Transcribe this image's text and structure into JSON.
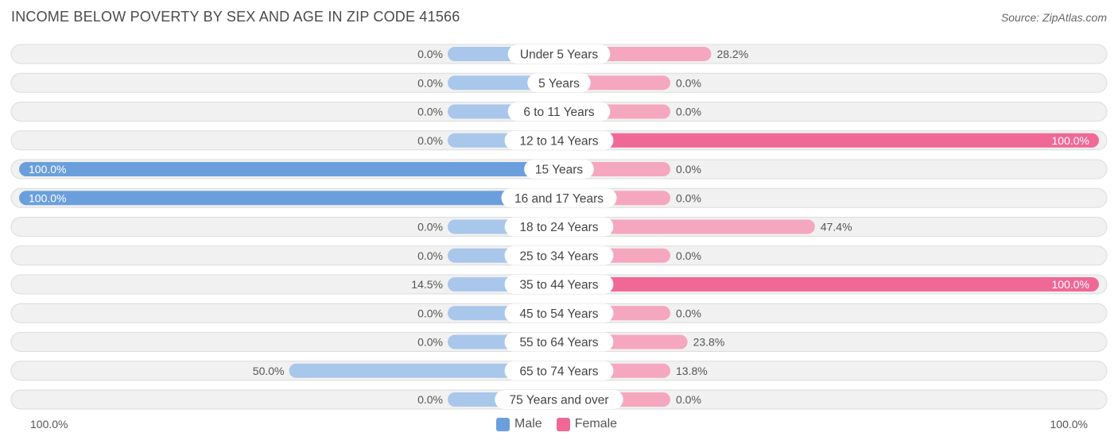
{
  "title": "INCOME BELOW POVERTY BY SEX AND AGE IN ZIP CODE 41566",
  "source": "Source: ZipAtlas.com",
  "axis": {
    "left_label": "100.0%",
    "right_label": "100.0%"
  },
  "legend": [
    {
      "label": "Male",
      "color": "#6a9fdc"
    },
    {
      "label": "Female",
      "color": "#f06896"
    }
  ],
  "colors": {
    "male_strong": "#6a9fdc",
    "male_light": "#a9c7eb",
    "female_strong": "#f06896",
    "female_light": "#f6a7c0",
    "row_bg": "#f1f1f1",
    "row_border": "#dcdcdc"
  },
  "chart_data": {
    "type": "bar",
    "orientation": "diverging-horizontal",
    "categories": [
      "Under 5 Years",
      "5 Years",
      "6 to 11 Years",
      "12 to 14 Years",
      "15 Years",
      "16 and 17 Years",
      "18 to 24 Years",
      "25 to 34 Years",
      "35 to 44 Years",
      "45 to 54 Years",
      "55 to 64 Years",
      "65 to 74 Years",
      "75 Years and over"
    ],
    "series": [
      {
        "name": "Male",
        "values": [
          0.0,
          0.0,
          0.0,
          0.0,
          100.0,
          100.0,
          0.0,
          0.0,
          14.5,
          0.0,
          0.0,
          50.0,
          0.0
        ],
        "labels": [
          "0.0%",
          "0.0%",
          "0.0%",
          "0.0%",
          "100.0%",
          "100.0%",
          "0.0%",
          "0.0%",
          "14.5%",
          "0.0%",
          "0.0%",
          "50.0%",
          "0.0%"
        ]
      },
      {
        "name": "Female",
        "values": [
          28.2,
          0.0,
          0.0,
          100.0,
          0.0,
          0.0,
          47.4,
          0.0,
          100.0,
          0.0,
          23.8,
          13.8,
          0.0
        ],
        "labels": [
          "28.2%",
          "0.0%",
          "0.0%",
          "100.0%",
          "0.0%",
          "0.0%",
          "47.4%",
          "0.0%",
          "100.0%",
          "0.0%",
          "23.8%",
          "13.8%",
          "0.0%"
        ]
      }
    ],
    "xlim": [
      0,
      100
    ],
    "legend_position": "bottom-center"
  }
}
